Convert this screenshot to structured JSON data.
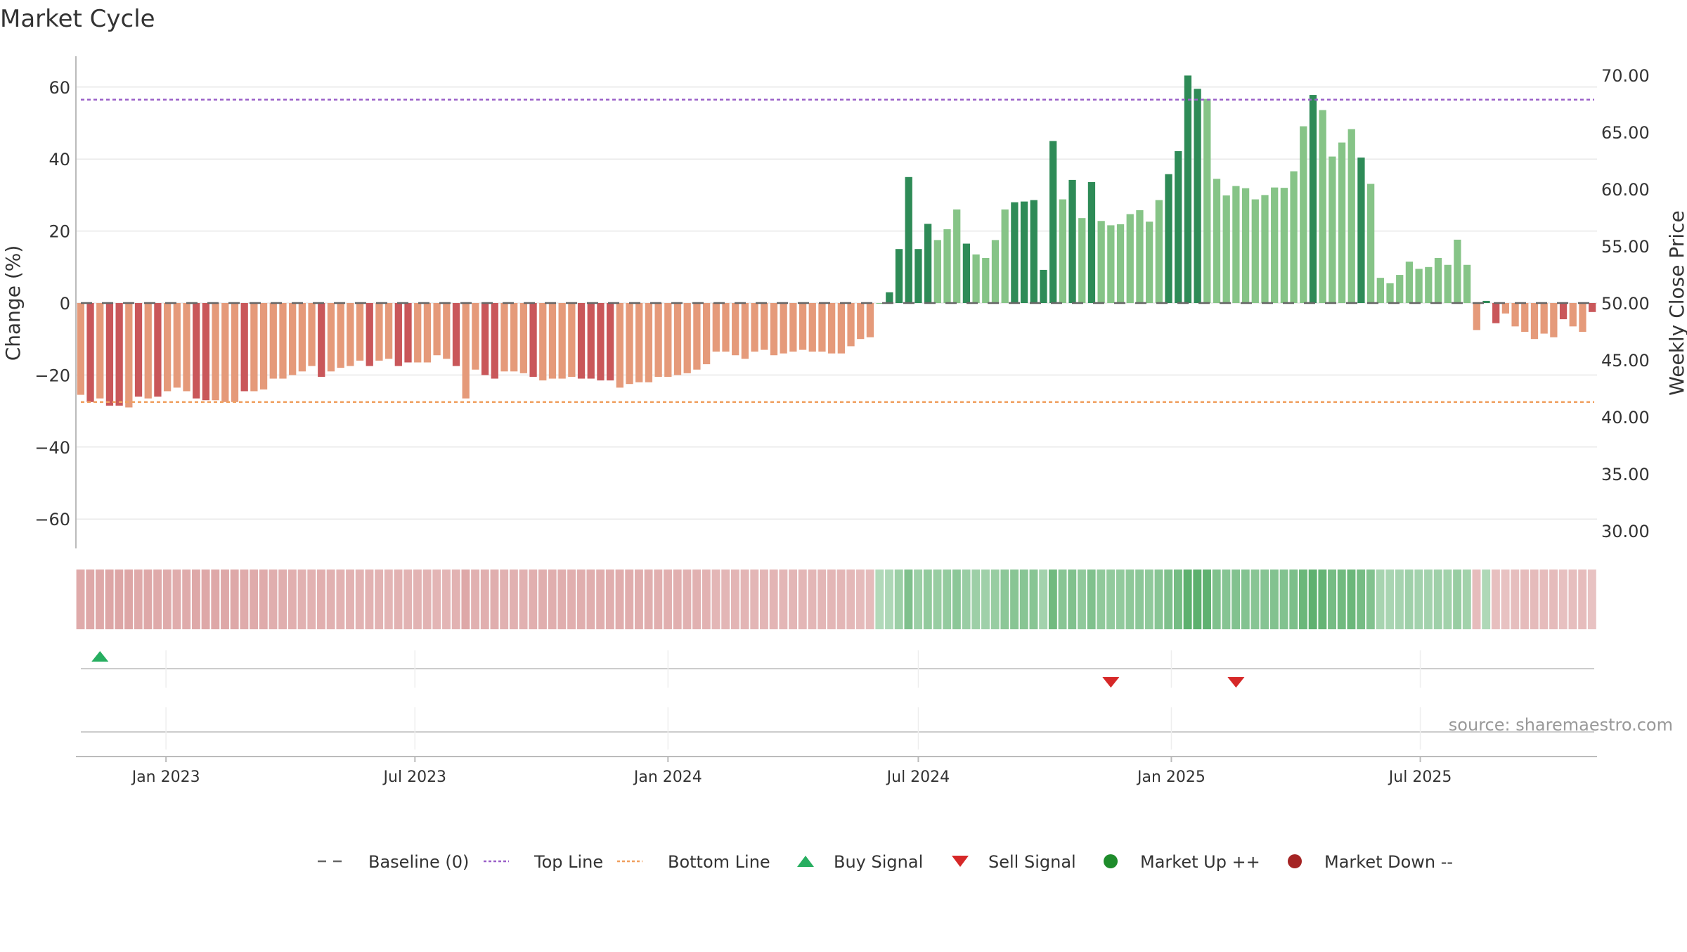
{
  "title": "Market Cycle",
  "source_note": "source: sharemaestro.com",
  "colors": {
    "down_dark": "#c9575a",
    "down_light": "#e59a7a",
    "up_dark": "#2e8b57",
    "up_light": "#86c487",
    "top_line": "#9a60c8",
    "bottom_line": "#f0a060",
    "baseline": "#666666",
    "buy": "#27ae60",
    "sell": "#d62828",
    "market_up": "#1e8c2b",
    "market_down": "#a52424",
    "grid": "#e8e8e8",
    "axis": "#bbbbbb"
  },
  "legend": [
    {
      "label": "Baseline (0)",
      "icon": "dash-line"
    },
    {
      "label": "Top Line",
      "icon": "dotted-purple"
    },
    {
      "label": "Bottom Line",
      "icon": "dotted-orange"
    },
    {
      "label": "Buy Signal",
      "icon": "triangle-up"
    },
    {
      "label": "Sell Signal",
      "icon": "triangle-down"
    },
    {
      "label": "Market Up ++",
      "icon": "dot-green"
    },
    {
      "label": "Market Down --",
      "icon": "dot-red"
    }
  ],
  "chart_data": {
    "type": "bar",
    "title": "Market Cycle",
    "ylabel": "Change (%)",
    "y2label": "Weekly Close Price",
    "ylim": [
      -68,
      68
    ],
    "y2lim": [
      28.5,
      71.5
    ],
    "yticks": [
      60,
      40,
      20,
      0,
      -20,
      -40,
      -60
    ],
    "y2ticks": [
      "70.00",
      "65.00",
      "60.00",
      "55.00",
      "50.00",
      "45.00",
      "40.00",
      "35.00",
      "30.00"
    ],
    "top_line": 56.5,
    "bottom_line": -27.5,
    "baseline": 0,
    "x_start": "2022-10-31",
    "x_step_days": 7,
    "x_tick_labels": [
      "Jan 2023",
      "Jul 2023",
      "Jan 2024",
      "Jul 2024",
      "Jan 2025",
      "Jul 2025"
    ],
    "x_tick_dates": [
      "2023-01-01",
      "2023-07-01",
      "2024-01-01",
      "2024-07-01",
      "2025-01-01",
      "2025-07-01"
    ],
    "values": [
      -25.5,
      -27.5,
      -26.5,
      -28.5,
      -28.5,
      -29,
      -26,
      -26.5,
      -26,
      -24.5,
      -23.5,
      -24.5,
      -26.5,
      -27,
      -27,
      -27.5,
      -27.5,
      -24.5,
      -24.5,
      -24,
      -21,
      -21,
      -20,
      -19,
      -17.5,
      -20.5,
      -19,
      -18,
      -17.5,
      -16,
      -17.5,
      -16,
      -15.5,
      -17.5,
      -16.5,
      -16.5,
      -16.5,
      -14.5,
      -15.5,
      -17.5,
      -26.5,
      -18.5,
      -20,
      -21,
      -19,
      -19,
      -19.5,
      -20.5,
      -21.5,
      -21,
      -21,
      -20.5,
      -21,
      -21,
      -21.5,
      -21.5,
      -23.5,
      -22.5,
      -22,
      -22,
      -20.5,
      -20.5,
      -20,
      -19.5,
      -18.5,
      -17,
      -13.5,
      -13.5,
      -14.5,
      -15.5,
      -13.5,
      -13,
      -14.5,
      -14,
      -13.5,
      -13,
      -13.5,
      -13.5,
      -14,
      -14,
      -12,
      -10,
      -9.5,
      0,
      3,
      15,
      35,
      15,
      22,
      17.5,
      20.5,
      26,
      16.5,
      13.5,
      12.5,
      17.5,
      26,
      28,
      28.2,
      28.6,
      9.2,
      45,
      28.8,
      34.2,
      23.6,
      33.6,
      22.8,
      21.6,
      21.9,
      24.7,
      25.8,
      22.6,
      28.6,
      35.8,
      42.2,
      63.2,
      59.5,
      56.7,
      34.5,
      29.9,
      32.5,
      31.9,
      28.8,
      30,
      32.1,
      32,
      36.6,
      49.1,
      57.8,
      53.6,
      40.7,
      44.6,
      48.3,
      40.4,
      33.1,
      7,
      5.5,
      7.8,
      11.5,
      9.5,
      10,
      12.5,
      10.6,
      17.6,
      10.6,
      -7.5,
      0.6,
      -5.6,
      -2.9,
      -6.5,
      -8,
      -10,
      -8.5,
      -9.5,
      -4.5,
      -6.5,
      -8,
      -2.5
    ],
    "light_indices": [
      0,
      2,
      5,
      7,
      9,
      10,
      11,
      14,
      15,
      16,
      18,
      19,
      20,
      21,
      22,
      23,
      24,
      26,
      27,
      28,
      29,
      31,
      32,
      35,
      36,
      37,
      38,
      40,
      41,
      44,
      45,
      46,
      48,
      49,
      50,
      51,
      56,
      57,
      58,
      59,
      60,
      61,
      62,
      63,
      64,
      65,
      66,
      67,
      68,
      69,
      70,
      71,
      72,
      73,
      74,
      75,
      76,
      77,
      78,
      79,
      80,
      81,
      82,
      83,
      89,
      90,
      91,
      93,
      94,
      95,
      96,
      102,
      104,
      106,
      107,
      108,
      109,
      110,
      111,
      112,
      117,
      118,
      119,
      120,
      121,
      122,
      123,
      124,
      125,
      126,
      127,
      129,
      130,
      131,
      132,
      134,
      135,
      136,
      137,
      138,
      139,
      140,
      141,
      142,
      143,
      144,
      145,
      148,
      149,
      150,
      151,
      152,
      153,
      155,
      156
    ],
    "buy_signal_dates": [
      "2022-11-14"
    ],
    "sell_signal_dates": [
      "2024-11-18",
      "2025-02-17"
    ]
  }
}
